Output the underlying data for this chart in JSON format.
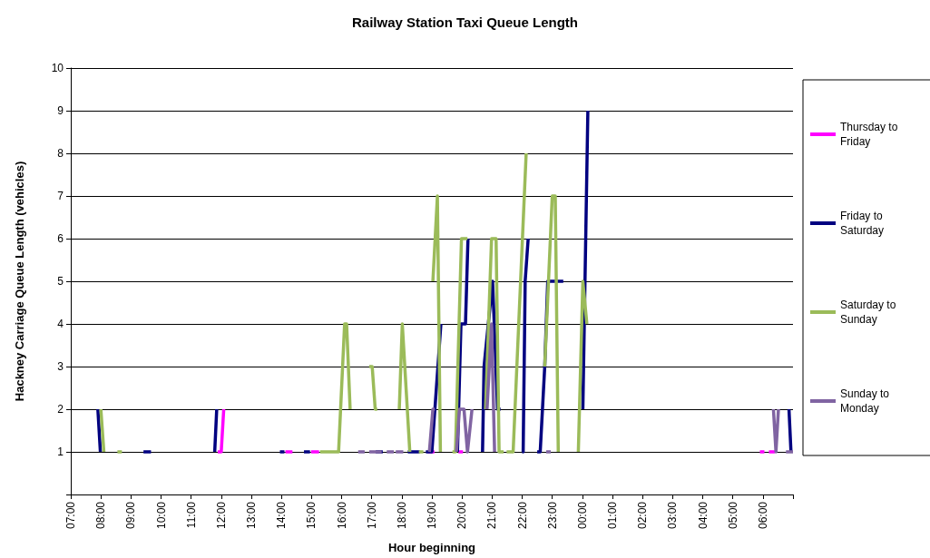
{
  "chart_data": {
    "type": "line",
    "title": "Railway Station Taxi Queue Length",
    "xlabel": "Hour beginning",
    "ylabel": "Hackney Carriage Queue Length (vehicles)",
    "xlim": [
      "2000-01-01T07:00",
      "2000-01-02T07:00"
    ],
    "xticks": [
      {
        "value": "2000-01-01T07:00",
        "label": "07:00"
      },
      {
        "value": "2000-01-01T08:00",
        "label": "08:00"
      },
      {
        "value": "2000-01-01T09:00",
        "label": "09:00"
      },
      {
        "value": "2000-01-01T10:00",
        "label": "10:00"
      },
      {
        "value": "2000-01-01T11:00",
        "label": "11:00"
      },
      {
        "value": "2000-01-01T12:00",
        "label": "12:00"
      },
      {
        "value": "2000-01-01T13:00",
        "label": "13:00"
      },
      {
        "value": "2000-01-01T14:00",
        "label": "14:00"
      },
      {
        "value": "2000-01-01T15:00",
        "label": "15:00"
      },
      {
        "value": "2000-01-01T16:00",
        "label": "16:00"
      },
      {
        "value": "2000-01-01T17:00",
        "label": "17:00"
      },
      {
        "value": "2000-01-01T18:00",
        "label": "18:00"
      },
      {
        "value": "2000-01-01T19:00",
        "label": "19:00"
      },
      {
        "value": "2000-01-01T20:00",
        "label": "20:00"
      },
      {
        "value": "2000-01-01T21:00",
        "label": "21:00"
      },
      {
        "value": "2000-01-01T22:00",
        "label": "22:00"
      },
      {
        "value": "2000-01-01T23:00",
        "label": "23:00"
      },
      {
        "value": "2000-01-02T00:00",
        "label": "00:00"
      },
      {
        "value": "2000-01-02T01:00",
        "label": "01:00"
      },
      {
        "value": "2000-01-02T02:00",
        "label": "02:00"
      },
      {
        "value": "2000-01-02T03:00",
        "label": "03:00"
      },
      {
        "value": "2000-01-02T04:00",
        "label": "04:00"
      },
      {
        "value": "2000-01-02T05:00",
        "label": "05:00"
      },
      {
        "value": "2000-01-02T06:00",
        "label": "06:00"
      },
      {
        "value": "2000-01-02T07:00",
        "label": null
      }
    ],
    "ylim": [
      0,
      10
    ],
    "yticks": [
      {
        "value": 0,
        "label": null
      },
      1,
      2,
      3,
      4,
      5,
      6,
      7,
      8,
      9,
      10
    ],
    "grid": "y",
    "legend": "right",
    "line_style": "solid",
    "series": [
      {
        "name": "Thursday to Friday",
        "color": "#ff00ff",
        "x": [
          "2000-01-01T11:53",
          "2000-01-01T12:00",
          "2000-01-01T12:05",
          null,
          "2000-01-01T14:08",
          "2000-01-01T14:22",
          null,
          "2000-01-01T14:59",
          "2000-01-01T15:15",
          null,
          "2000-01-01T18:52",
          "2000-01-01T19:05",
          null,
          "2000-01-01T19:53",
          "2000-01-01T20:02",
          null,
          "2000-01-02T05:54",
          "2000-01-02T06:03",
          null,
          "2000-01-02T06:12",
          "2000-01-02T06:24"
        ],
        "values": [
          1,
          1,
          2,
          null,
          1,
          1,
          null,
          1,
          1,
          null,
          1,
          1,
          null,
          1,
          1,
          null,
          1,
          1,
          null,
          1,
          1
        ]
      },
      {
        "name": "Friday to Saturday",
        "color": "#000080",
        "x": [
          "2000-01-01T07:54",
          "2000-01-01T07:59",
          "2000-01-01T08:00",
          null,
          "2000-01-01T09:25",
          "2000-01-01T09:40",
          null,
          "2000-01-01T11:47",
          "2000-01-01T11:51",
          null,
          "2000-01-01T13:57",
          "2000-01-01T14:06",
          null,
          "2000-01-01T14:45",
          "2000-01-01T14:57",
          null,
          "2000-01-01T17:08",
          "2000-01-01T17:22",
          null,
          "2000-01-01T18:12",
          "2000-01-01T18:36",
          null,
          "2000-01-01T18:48",
          "2000-01-01T19:00",
          "2000-01-01T19:18",
          null,
          "2000-01-01T19:51",
          "2000-01-01T19:58",
          "2000-01-01T20:07",
          "2000-01-01T20:12",
          null,
          "2000-01-01T20:41",
          "2000-01-01T20:44",
          "2000-01-01T21:01",
          "2000-01-01T21:11",
          "2000-01-01T21:17",
          null,
          "2000-01-01T22:00",
          "2000-01-01T22:02",
          "2000-01-01T22:06",
          "2000-01-01T22:12",
          null,
          "2000-01-01T22:30",
          "2000-01-01T22:36",
          "2000-01-01T22:45",
          "2000-01-01T22:51",
          "2000-01-01T23:22",
          null,
          "2000-01-02T00:01",
          "2000-01-02T00:11",
          null,
          "2000-01-02T06:52",
          "2000-01-02T06:56"
        ],
        "values": [
          2,
          1,
          1,
          null,
          1,
          1,
          null,
          1,
          2,
          null,
          1,
          1,
          null,
          1,
          1,
          null,
          1,
          1,
          null,
          1,
          1,
          null,
          1,
          1,
          4,
          null,
          1,
          4,
          4,
          6,
          null,
          1,
          3,
          5,
          2,
          2,
          null,
          1,
          1,
          5,
          6,
          null,
          1,
          1,
          3,
          5,
          5,
          null,
          2,
          9,
          null,
          2,
          1
        ]
      },
      {
        "name": "Saturday to Sunday",
        "color": "#9bbb59",
        "x": [
          "2000-01-01T08:00",
          "2000-01-01T08:06",
          null,
          "2000-01-01T08:33",
          "2000-01-01T08:42",
          null,
          "2000-01-01T15:17",
          "2000-01-01T15:54",
          "2000-01-01T16:06",
          "2000-01-01T16:10",
          "2000-01-01T16:17",
          null,
          "2000-01-01T16:55",
          "2000-01-01T17:01",
          "2000-01-01T17:07",
          "2000-01-01T17:11",
          null,
          "2000-01-01T17:55",
          "2000-01-01T18:01",
          "2000-01-01T18:16",
          null,
          "2000-01-01T18:34",
          "2000-01-01T18:43",
          null,
          "2000-01-01T19:02",
          "2000-01-01T19:11",
          "2000-01-01T19:17",
          null,
          "2000-01-01T19:41",
          "2000-01-01T19:47",
          "2000-01-01T19:59",
          "2000-01-01T20:11",
          null,
          "2000-01-01T20:47",
          "2000-01-01T20:59",
          "2000-01-01T21:08",
          "2000-01-01T21:14",
          "2000-01-01T21:23",
          null,
          "2000-01-01T21:29",
          "2000-01-01T21:42",
          "2000-01-01T22:08",
          null,
          "2000-01-01T22:45",
          "2000-01-01T23:00",
          "2000-01-01T23:06",
          "2000-01-01T23:12",
          null,
          "2000-01-01T23:52",
          "2000-01-02T00:01",
          "2000-01-02T00:09"
        ],
        "values": [
          2,
          1,
          null,
          1,
          1,
          null,
          1,
          1,
          4,
          4,
          2,
          null,
          3,
          3,
          2,
          2,
          null,
          2,
          4,
          1,
          null,
          1,
          1,
          null,
          5,
          7,
          1,
          null,
          1,
          1,
          6,
          6,
          null,
          2,
          6,
          6,
          1,
          1,
          null,
          1,
          1,
          8,
          null,
          3,
          7,
          7,
          1,
          null,
          1,
          5,
          4
        ]
      },
      {
        "name": "Sunday to Monday",
        "color": "#8064a2",
        "x": [
          "2000-01-01T16:33",
          "2000-01-01T16:46",
          null,
          "2000-01-01T16:55",
          "2000-01-01T17:20",
          null,
          "2000-01-01T17:30",
          "2000-01-01T17:44",
          null,
          "2000-01-01T17:48",
          "2000-01-01T18:03",
          null,
          "2000-01-01T18:55",
          "2000-01-01T19:02",
          "2000-01-01T19:06",
          null,
          "2000-01-01T19:49",
          "2000-01-01T19:55",
          "2000-01-01T20:04",
          "2000-01-01T20:11",
          "2000-01-01T20:20",
          null,
          "2000-01-01T20:50",
          "2000-01-01T20:59",
          "2000-01-01T21:05",
          null,
          "2000-01-01T22:48",
          "2000-01-01T22:57",
          null,
          "2000-01-02T06:21",
          "2000-01-02T06:26",
          "2000-01-02T06:31",
          null,
          "2000-01-02T06:46",
          "2000-01-02T07:00"
        ],
        "values": [
          1,
          1,
          null,
          1,
          1,
          null,
          1,
          1,
          null,
          1,
          1,
          null,
          1,
          2,
          2,
          null,
          1,
          2,
          2,
          1,
          2,
          null,
          2,
          4,
          1,
          null,
          1,
          1,
          null,
          2,
          1,
          2,
          null,
          1,
          1
        ]
      }
    ]
  }
}
